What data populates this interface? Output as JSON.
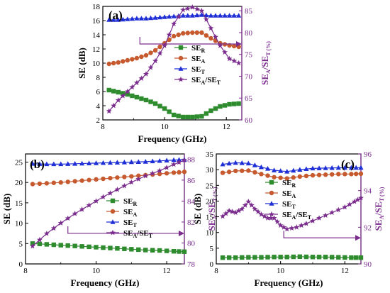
{
  "colors": {
    "SE_R": "#2e8b2e",
    "SE_A": "#c65a2e",
    "SE_T": "#1f2fd6",
    "ratio": "#7b2d8e",
    "axis": "#000000"
  },
  "chart_data": [
    {
      "panel": "(a)",
      "type": "line",
      "xlabel": "Frequency (GHz)",
      "ylabel": "SE (dB)",
      "ylabel_right": "SE_A/SE_T (%)",
      "xlim": [
        8,
        12.5
      ],
      "ylim": [
        2,
        18
      ],
      "ylim_right": [
        60,
        86
      ],
      "xticks": [
        "8",
        "10",
        "12"
      ],
      "yticks": [
        "2",
        "4",
        "6",
        "8",
        "10",
        "12",
        "14",
        "16",
        "18"
      ],
      "yticks_right": [
        "60",
        "65",
        "70",
        "75",
        "80",
        "85"
      ],
      "legend_placement": "center-right",
      "legend": [
        "SE_R",
        "SE_A",
        "SE_T",
        "SE_A/SE_T"
      ],
      "series": [
        {
          "name": "SE_R",
          "color": "#2e8b2e",
          "marker": "square",
          "axis": "left",
          "x": [
            8.2,
            8.5,
            8.8,
            9.1,
            9.4,
            9.7,
            10.0,
            10.3,
            10.6,
            10.9,
            11.2,
            11.5,
            11.8,
            12.1,
            12.4
          ],
          "y": [
            6.2,
            5.9,
            5.6,
            5.2,
            4.8,
            4.3,
            3.6,
            2.7,
            2.4,
            2.4,
            2.5,
            3.3,
            3.9,
            4.2,
            4.3
          ]
        },
        {
          "name": "SE_A",
          "color": "#c65a2e",
          "marker": "circle",
          "axis": "left",
          "x": [
            8.2,
            8.5,
            8.8,
            9.1,
            9.4,
            9.7,
            10.0,
            10.3,
            10.6,
            10.9,
            11.2,
            11.5,
            11.8,
            12.1,
            12.4
          ],
          "y": [
            9.9,
            10.1,
            10.4,
            10.7,
            11.1,
            11.8,
            12.8,
            13.8,
            14.2,
            14.3,
            14.3,
            13.5,
            12.8,
            12.5,
            12.3
          ]
        },
        {
          "name": "SE_T",
          "color": "#1f2fd6",
          "marker": "triangle",
          "axis": "left",
          "x": [
            8.2,
            8.5,
            8.8,
            9.1,
            9.4,
            9.7,
            10.0,
            10.3,
            10.6,
            10.9,
            11.2,
            11.5,
            11.8,
            12.1,
            12.4
          ],
          "y": [
            16.1,
            16.1,
            16.2,
            16.3,
            16.3,
            16.4,
            16.5,
            16.6,
            16.7,
            16.7,
            16.8,
            16.7,
            16.7,
            16.7,
            16.7
          ]
        },
        {
          "name": "SE_A/SE_T",
          "color": "#7b2d8e",
          "marker": "star",
          "axis": "right",
          "x": [
            8.2,
            8.5,
            8.8,
            9.1,
            9.4,
            9.7,
            10.0,
            10.3,
            10.6,
            10.9,
            11.2,
            11.5,
            11.8,
            12.1,
            12.4
          ],
          "y": [
            62,
            64.5,
            66.5,
            68.5,
            70.5,
            73.5,
            77,
            82,
            85.2,
            85.8,
            85,
            81,
            77,
            74,
            73
          ]
        }
      ],
      "arrow": {
        "from_x": 9.2,
        "to_x": 12.5,
        "y": 12.7,
        "axis": "left"
      }
    },
    {
      "panel": "(b)",
      "type": "line",
      "xlabel": "Frequency (GHz)",
      "ylabel": "SE (dB)",
      "ylabel_right": "SE_A/SE_T (%)",
      "xlim": [
        8,
        12.5
      ],
      "ylim": [
        0,
        27
      ],
      "ylim_right": [
        78,
        88.5
      ],
      "xticks": [
        "8",
        "10",
        "12"
      ],
      "yticks": [
        "0",
        "5",
        "10",
        "15",
        "20",
        "25"
      ],
      "yticks_right": [
        "78",
        "80",
        "82",
        "84",
        "86",
        "88"
      ],
      "legend_placement": "center-right",
      "legend": [
        "SE_R",
        "SE_A",
        "SE_T",
        "SE_A/SE_T"
      ],
      "series": [
        {
          "name": "SE_R",
          "color": "#2e8b2e",
          "marker": "square",
          "axis": "left",
          "x": [
            8.2,
            8.6,
            9.0,
            9.4,
            9.8,
            10.2,
            10.6,
            11.0,
            11.4,
            11.8,
            12.2,
            12.5
          ],
          "y": [
            5.0,
            4.8,
            4.6,
            4.4,
            4.2,
            4.0,
            3.8,
            3.6,
            3.4,
            3.3,
            3.1,
            3.0
          ]
        },
        {
          "name": "SE_A",
          "color": "#c65a2e",
          "marker": "circle",
          "axis": "left",
          "x": [
            8.2,
            8.6,
            9.0,
            9.4,
            9.8,
            10.2,
            10.6,
            11.0,
            11.4,
            11.8,
            12.2,
            12.5
          ],
          "y": [
            19.6,
            19.8,
            20.0,
            20.3,
            20.6,
            20.9,
            21.2,
            21.5,
            21.8,
            22.1,
            22.4,
            22.6
          ]
        },
        {
          "name": "SE_T",
          "color": "#1f2fd6",
          "marker": "triangle",
          "axis": "left",
          "x": [
            8.2,
            8.6,
            9.0,
            9.4,
            9.8,
            10.2,
            10.6,
            11.0,
            11.4,
            11.8,
            12.2,
            12.5
          ],
          "y": [
            24.6,
            24.5,
            24.5,
            24.6,
            24.7,
            24.8,
            24.9,
            25.0,
            25.1,
            25.3,
            25.5,
            25.6
          ]
        },
        {
          "name": "SE_A/SE_T",
          "color": "#7b2d8e",
          "marker": "star",
          "axis": "right",
          "x": [
            8.2,
            8.6,
            9.0,
            9.4,
            9.8,
            10.2,
            10.6,
            11.0,
            11.4,
            11.8,
            12.2,
            12.5
          ],
          "y": [
            79.7,
            80.9,
            81.9,
            82.8,
            83.6,
            84.4,
            85.1,
            85.8,
            86.4,
            86.9,
            87.5,
            87.9
          ]
        }
      ],
      "arrow": {
        "from_x": 9.2,
        "to_x": 12.5,
        "y": 7.5,
        "axis": "left"
      }
    },
    {
      "panel": "(c)",
      "type": "line",
      "xlabel": "Frequency (GHz)",
      "ylabel": "SE (dB)",
      "ylabel_right": "SE_A/SE_T (%)",
      "xlim": [
        8,
        12.5
      ],
      "ylim": [
        0,
        35
      ],
      "ylim_right": [
        90,
        96
      ],
      "xticks": [
        "8",
        "10",
        "12"
      ],
      "yticks": [
        "0",
        "5",
        "10",
        "15",
        "20",
        "25",
        "30",
        "35"
      ],
      "yticks_right": [
        "90",
        "92",
        "94",
        "96"
      ],
      "legend_placement": "center-right",
      "legend": [
        "SE_R",
        "SE_A",
        "SE_T",
        "SE_A/SE_T"
      ],
      "series": [
        {
          "name": "SE_R",
          "color": "#2e8b2e",
          "marker": "square",
          "axis": "left",
          "x": [
            8.2,
            8.6,
            9.0,
            9.4,
            9.8,
            10.2,
            10.6,
            11.0,
            11.4,
            11.8,
            12.2,
            12.5
          ],
          "y": [
            2.0,
            2.0,
            2.1,
            2.1,
            2.2,
            2.2,
            2.3,
            2.2,
            2.2,
            2.1,
            2.0,
            2.0
          ]
        },
        {
          "name": "SE_A",
          "color": "#c65a2e",
          "marker": "circle",
          "axis": "left",
          "x": [
            8.2,
            8.6,
            9.0,
            9.4,
            9.8,
            10.2,
            10.6,
            11.0,
            11.4,
            11.8,
            12.2,
            12.5
          ],
          "y": [
            29.0,
            29.6,
            29.7,
            28.6,
            27.6,
            27.2,
            27.8,
            28.2,
            28.4,
            28.6,
            28.6,
            28.7
          ]
        },
        {
          "name": "SE_T",
          "color": "#1f2fd6",
          "marker": "triangle",
          "axis": "left",
          "x": [
            8.2,
            8.6,
            9.0,
            9.4,
            9.8,
            10.2,
            10.6,
            11.0,
            11.4,
            11.8,
            12.2,
            12.5
          ],
          "y": [
            31.7,
            32.2,
            32.0,
            30.8,
            29.8,
            29.4,
            30.0,
            30.4,
            30.5,
            30.6,
            30.6,
            30.6
          ]
        },
        {
          "name": "SE_A/SE_T",
          "color": "#7b2d8e",
          "marker": "star",
          "axis": "right",
          "x": [
            8.2,
            8.4,
            8.6,
            8.8,
            9.0,
            9.2,
            9.4,
            9.6,
            9.8,
            10.0,
            10.2,
            10.5,
            10.8,
            11.2,
            11.6,
            12.0,
            12.3,
            12.5
          ],
          "y": [
            92.6,
            92.9,
            92.8,
            93.0,
            93.4,
            93.0,
            92.7,
            92.5,
            92.5,
            92.1,
            91.9,
            92.0,
            92.2,
            92.5,
            92.8,
            93.1,
            93.4,
            93.6
          ]
        }
      ],
      "arrow": {
        "from_x": 10.1,
        "to_x": 12.5,
        "y": 8.3,
        "axis": "left"
      }
    }
  ]
}
